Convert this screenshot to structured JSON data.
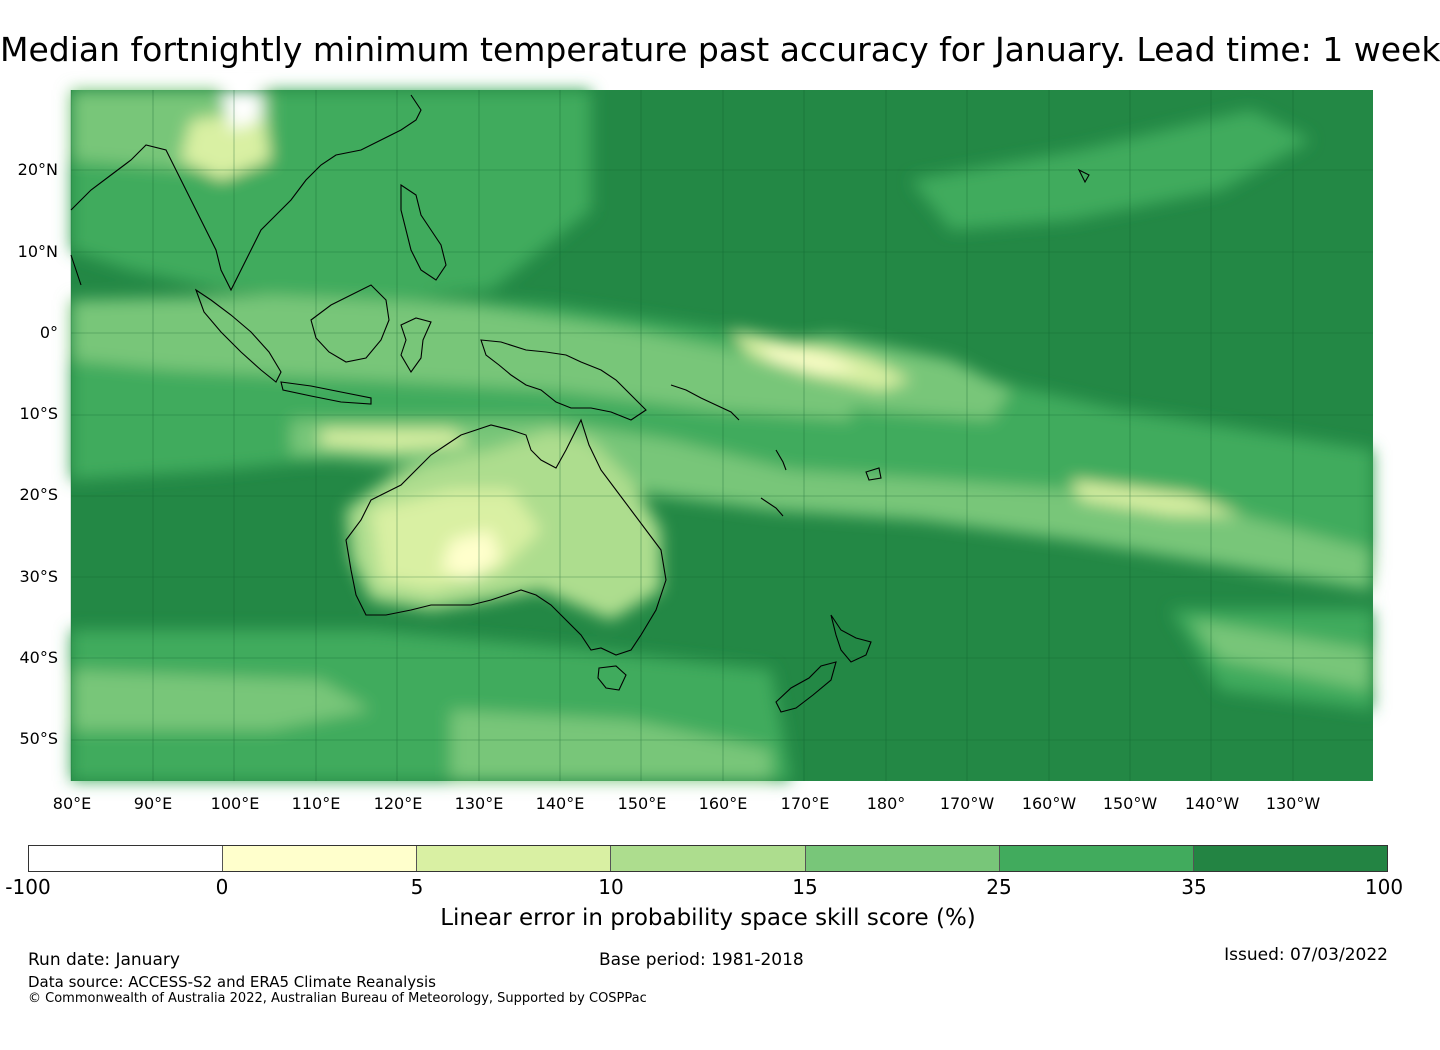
{
  "title": "Median fortnightly minimum temperature past accuracy for January. Lead time: 1 week",
  "map": {
    "lat_labels": [
      "20°N",
      "10°N",
      "0°",
      "10°S",
      "20°S",
      "30°S",
      "40°S",
      "50°S"
    ],
    "lon_labels": [
      "80°E",
      "90°E",
      "100°E",
      "110°E",
      "120°E",
      "130°E",
      "140°E",
      "150°E",
      "160°E",
      "170°E",
      "180°",
      "170°W",
      "160°W",
      "150°W",
      "140°W",
      "130°W"
    ],
    "base_color": "#238845"
  },
  "colorbar": {
    "colors": [
      "#ffffff",
      "#ffffcc",
      "#d9f0a3",
      "#addd8e",
      "#78c679",
      "#41ab5d",
      "#238443"
    ],
    "ticks": [
      "-100",
      "0",
      "5",
      "10",
      "15",
      "25",
      "35",
      "100"
    ],
    "label": "Linear error in probability space skill score (%)"
  },
  "footer": {
    "run_date": "Run date: January",
    "base_period": "Base period: 1981-2018",
    "issued": "Issued: 07/03/2022",
    "data_source": "Data source: ACCESS-S2 and ERA5 Climate Reanalysis",
    "copyright": "© Commonwealth of Australia 2022, Australian Bureau of Meteorology, Supported by COSPPac"
  }
}
